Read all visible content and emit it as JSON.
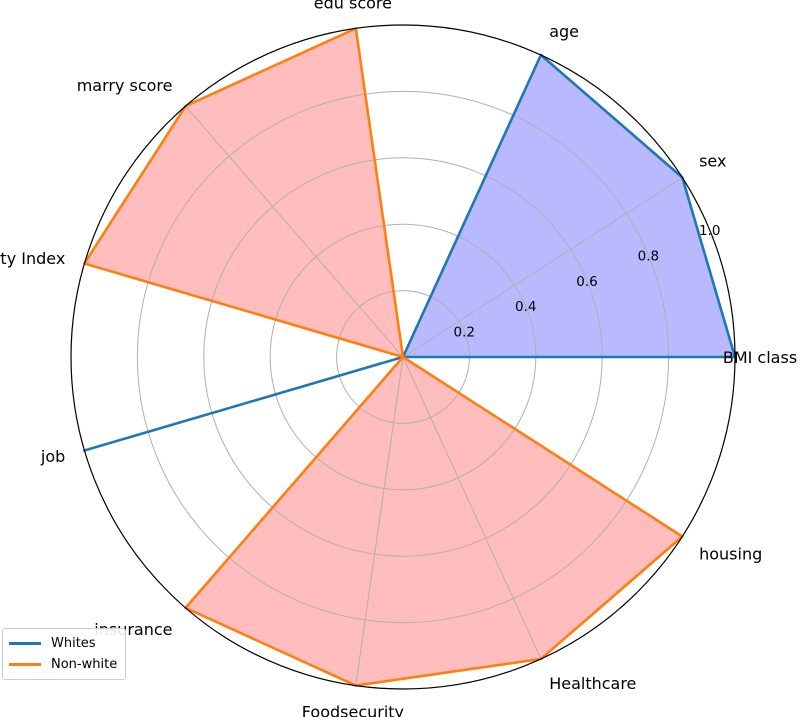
{
  "chart_data": {
    "type": "radar",
    "axes": [
      "BMI class",
      "sex",
      "age",
      "edu score",
      "marry score",
      "Poverty Index",
      "job",
      "insurance",
      "Foodsecurity",
      "Healthcare",
      "housing"
    ],
    "radial_ticks": [
      "0.2",
      "0.4",
      "0.6",
      "0.8",
      "1.0"
    ],
    "radial_tick_values": [
      0.2,
      0.4,
      0.6,
      0.8,
      1.0
    ],
    "rlim": [
      0,
      1.0
    ],
    "grid": true,
    "legend_position": "lower-left",
    "series": [
      {
        "name": "Whites",
        "color": "#1f77b4",
        "fill": "#b9b9ff",
        "values": [
          1.0,
          1.0,
          1.0,
          0,
          0,
          0,
          1.0,
          0,
          0,
          0,
          0
        ]
      },
      {
        "name": "Non-white",
        "color": "#ff7f0e",
        "fill": "#ffbdbd",
        "values": [
          0,
          0,
          0,
          1.0,
          1.0,
          1.0,
          0,
          1.0,
          1.0,
          1.0,
          1.0
        ]
      }
    ]
  }
}
